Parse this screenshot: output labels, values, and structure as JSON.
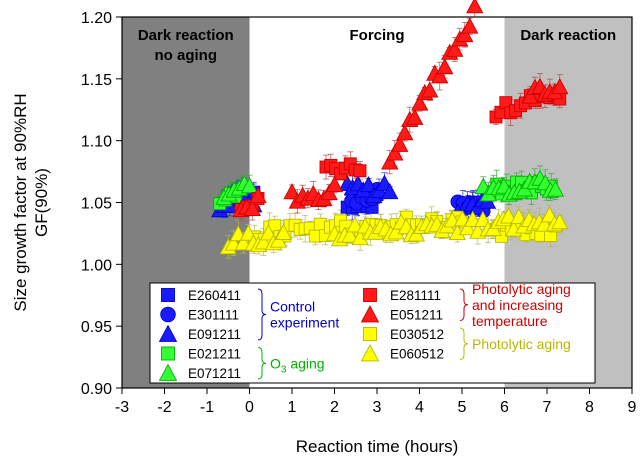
{
  "colors": {
    "dark_region": "#808080",
    "light_region": "#c0c0c0",
    "blue": "#0000cc",
    "blue_fill": "#1a1aff",
    "green": "#00b000",
    "green_fill": "#33ff33",
    "red": "#cc0000",
    "red_fill": "#ff1a1a",
    "yellow": "#b8b800",
    "yellow_fill": "#ffff00",
    "error_blue": "#2b2bd4",
    "error_green": "#3da83d",
    "error_red": "#b84a4a",
    "error_yellow": "#b8b85a"
  },
  "chart_data": {
    "type": "scatter",
    "xlabel": "Reaction time (hours)",
    "ylabel_line1": "Size growth factor at 90%RH",
    "ylabel_line2": "GF(90%)",
    "xlim": [
      -3,
      9
    ],
    "ylim": [
      0.9,
      1.2
    ],
    "xticks": [
      -3,
      -2,
      -1,
      0,
      1,
      2,
      3,
      4,
      5,
      6,
      7,
      8,
      9
    ],
    "xtick_labels": [
      "-3",
      "-2",
      "-1",
      "0",
      "1",
      "2",
      "3",
      "4",
      "5",
      "6",
      "7",
      "8",
      "9"
    ],
    "yticks": [
      0.9,
      0.95,
      1.0,
      1.05,
      1.1,
      1.15,
      1.2
    ],
    "ytick_labels": [
      "0.90",
      "0.95",
      "1.00",
      "1.05",
      "1.10",
      "1.15",
      "1.20"
    ],
    "regions": [
      {
        "label_line1": "Dark reaction",
        "label_line2": "no aging",
        "x0": -3,
        "x1": 0,
        "shade": "dark"
      },
      {
        "label_line1": "Forcing",
        "label_line2": "",
        "x0": 0,
        "x1": 6,
        "shade": "none"
      },
      {
        "label_line1": "Dark reaction",
        "label_line2": "",
        "x0": 6,
        "x1": 9,
        "shade": "light"
      }
    ],
    "series": [
      {
        "name": "E260411",
        "marker": "square",
        "color": "blue",
        "segments": [
          [
            -0.6,
            0.1,
            1.055,
            0.003
          ],
          [
            2.3,
            3.0,
            1.05,
            0.002
          ],
          [
            5.0,
            5.5,
            1.05,
            0.003
          ]
        ]
      },
      {
        "name": "E301111",
        "marker": "circle",
        "color": "blue",
        "segments": [
          [
            -0.6,
            0.1,
            1.055,
            0.002
          ],
          [
            2.4,
            3.0,
            1.055,
            0.001
          ],
          [
            4.9,
            5.5,
            1.045,
            0.002
          ]
        ]
      },
      {
        "name": "E091211",
        "marker": "triangle",
        "color": "blue",
        "segments": [
          [
            -0.7,
            0.1,
            1.05,
            0.002
          ],
          [
            2.3,
            3.3,
            1.06,
            0.002
          ],
          [
            4.9,
            5.6,
            1.045,
            0.004
          ]
        ]
      },
      {
        "name": "E021211",
        "marker": "square",
        "color": "green",
        "segments": [
          [
            -0.7,
            -0.2,
            1.055,
            0.003
          ],
          [
            5.7,
            7.1,
            1.06,
            0.002
          ]
        ]
      },
      {
        "name": "E071211",
        "marker": "triangle",
        "color": "green",
        "segments": [
          [
            -0.6,
            0.0,
            1.06,
            0.003
          ],
          [
            5.5,
            7.2,
            1.06,
            0.003
          ]
        ]
      },
      {
        "name": "E281111",
        "marker": "square",
        "color": "red",
        "segments": [
          [
            -0.2,
            0.2,
            1.05,
            0.002
          ],
          [
            1.8,
            2.6,
            1.075,
            0.005
          ],
          [
            5.8,
            7.3,
            1.125,
            0.008
          ]
        ]
      },
      {
        "name": "E051211",
        "marker": "triangle",
        "color": "red",
        "segments": [
          [
            -0.2,
            0.2,
            1.05,
            0.003
          ],
          [
            1.0,
            2.0,
            1.055,
            0.005
          ],
          [
            3.3,
            5.3,
            1.085,
            0.06
          ],
          [
            6.6,
            7.3,
            1.14,
            0.004
          ]
        ]
      },
      {
        "name": "E030512",
        "marker": "square",
        "color": "yellow",
        "segments": [
          [
            0.0,
            5.0,
            1.025,
            0.002
          ],
          [
            5.7,
            7.2,
            1.025,
            0.002
          ]
        ]
      },
      {
        "name": "E060512",
        "marker": "triangle",
        "color": "yellow",
        "segments": [
          [
            -0.5,
            0.8,
            1.02,
            0.002
          ],
          [
            2.0,
            7.3,
            1.025,
            0.002
          ]
        ]
      }
    ],
    "legend": {
      "placement": "bottom-left",
      "groups": [
        {
          "label_line1": "Control",
          "label_line2": "experiment",
          "label_line3": "",
          "color": "blue",
          "members": [
            "E260411",
            "E301111",
            "E091211"
          ]
        },
        {
          "label_line1": "O",
          "label_sub": "3",
          "label_rest": " aging",
          "color": "green",
          "members": [
            "E021211",
            "E071211"
          ]
        },
        {
          "label_line1": "Photolytic aging",
          "label_line2": "and increasing",
          "label_line3": "temperature",
          "color": "red",
          "members": [
            "E281111",
            "E051211"
          ]
        },
        {
          "label_line1": "Photolytic aging",
          "label_line2": "",
          "label_line3": "",
          "color": "yellow",
          "members": [
            "E030512",
            "E060512"
          ]
        }
      ]
    }
  }
}
